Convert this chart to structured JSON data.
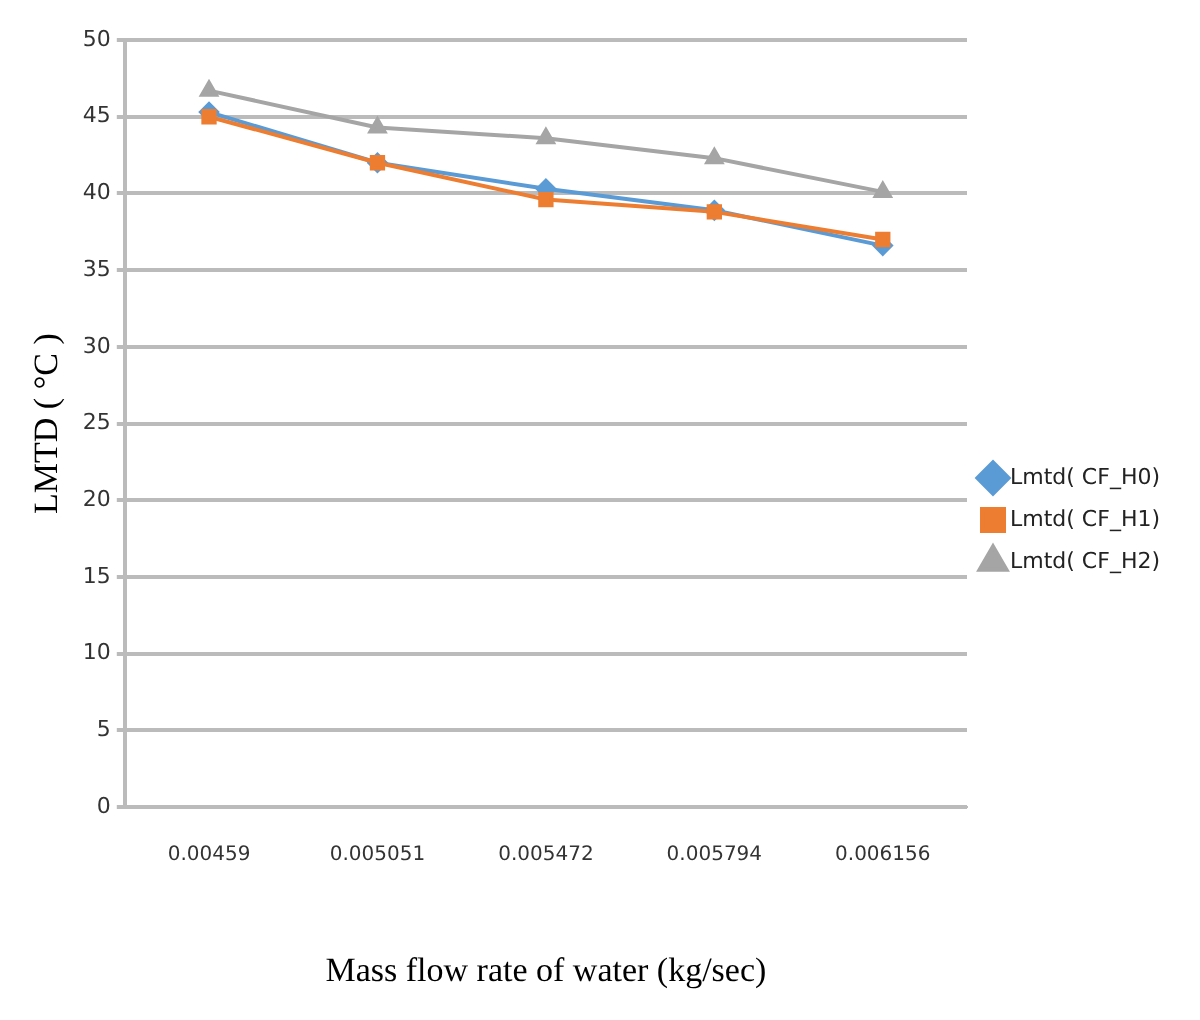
{
  "chart_data": {
    "type": "line",
    "xlabel": "Mass flow rate of water (kg/sec)",
    "ylabel": "LMTD ( °C )",
    "categories": [
      "0.00459",
      "0.005051",
      "0.005472",
      "0.005794",
      "0.006156"
    ],
    "series": [
      {
        "name": "Lmtd( CF_H0)",
        "color": "#5b9bd5",
        "marker": "diamond",
        "values": [
          45.3,
          42.0,
          40.3,
          38.9,
          36.6
        ]
      },
      {
        "name": "Lmtd( CF_H1)",
        "color": "#ed7d31",
        "marker": "square",
        "values": [
          45.0,
          42.0,
          39.6,
          38.8,
          37.0
        ]
      },
      {
        "name": "Lmtd( CF_H2)",
        "color": "#a5a5a5",
        "marker": "triangle",
        "values": [
          46.7,
          44.3,
          43.6,
          42.3,
          40.1
        ]
      }
    ],
    "ylim": [
      0,
      50
    ],
    "yticks": [
      0,
      5,
      10,
      15,
      20,
      25,
      30,
      35,
      40,
      45,
      50
    ],
    "grid": "y",
    "legend": "right"
  }
}
